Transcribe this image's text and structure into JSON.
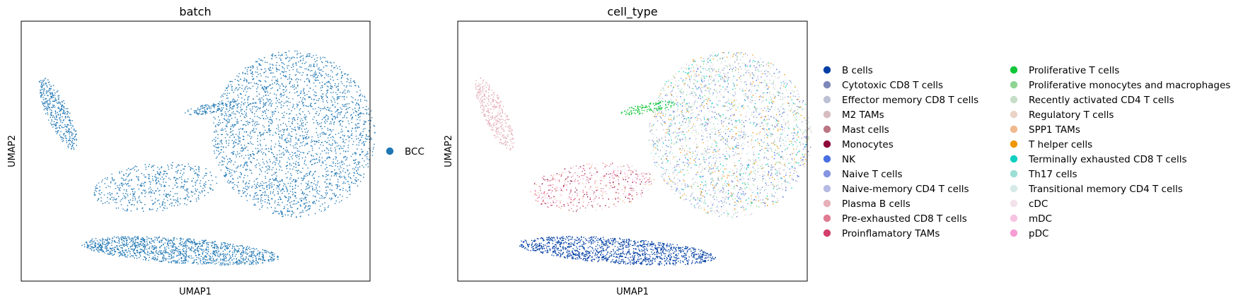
{
  "chart_data": [
    {
      "type": "scatter",
      "title": "batch",
      "xlabel": "UMAP1",
      "ylabel": "UMAP2",
      "grid": false,
      "legend_position": "right",
      "series": [
        {
          "name": "BCC",
          "color": "#1f77b4"
        }
      ]
    },
    {
      "type": "scatter",
      "title": "cell_type",
      "xlabel": "UMAP1",
      "ylabel": "UMAP2",
      "grid": false,
      "legend_position": "right",
      "series": [
        {
          "name": "B cells",
          "color": "#023fa5"
        },
        {
          "name": "Cytotoxic CD8 T cells",
          "color": "#7d87b9"
        },
        {
          "name": "Effector memory CD8 T cells",
          "color": "#bec1d4"
        },
        {
          "name": "M2 TAMs",
          "color": "#d6bcc0"
        },
        {
          "name": "Mast cells",
          "color": "#bb7784"
        },
        {
          "name": "Monocytes",
          "color": "#8e063b"
        },
        {
          "name": "NK",
          "color": "#4a6fe3"
        },
        {
          "name": "Naive T cells",
          "color": "#8595e1"
        },
        {
          "name": "Naive-memory CD4 T cells",
          "color": "#b5bbe3"
        },
        {
          "name": "Plasma B cells",
          "color": "#e6afb9"
        },
        {
          "name": "Pre-exhausted CD8 T cells",
          "color": "#e07b91"
        },
        {
          "name": "Proinflamatory TAMs",
          "color": "#d33f6a"
        },
        {
          "name": "Proliferative T cells",
          "color": "#11c638"
        },
        {
          "name": "Proliferative monocytes and macrophages",
          "color": "#8dd593"
        },
        {
          "name": "Recently activated CD4 T cells",
          "color": "#c6dec7"
        },
        {
          "name": "Regulatory T cells",
          "color": "#ead3c6"
        },
        {
          "name": "SPP1 TAMs",
          "color": "#f0b98d"
        },
        {
          "name": "T helper cells",
          "color": "#ef9708"
        },
        {
          "name": "Terminally exhausted CD8 T cells",
          "color": "#0fcfc0"
        },
        {
          "name": "Th17 cells",
          "color": "#9cded6"
        },
        {
          "name": "Transitional memory CD4 T cells",
          "color": "#d5eae7"
        },
        {
          "name": "cDC",
          "color": "#f3e1eb"
        },
        {
          "name": "mDC",
          "color": "#f6c4e1"
        },
        {
          "name": "pDC",
          "color": "#f79cd4"
        }
      ]
    }
  ]
}
